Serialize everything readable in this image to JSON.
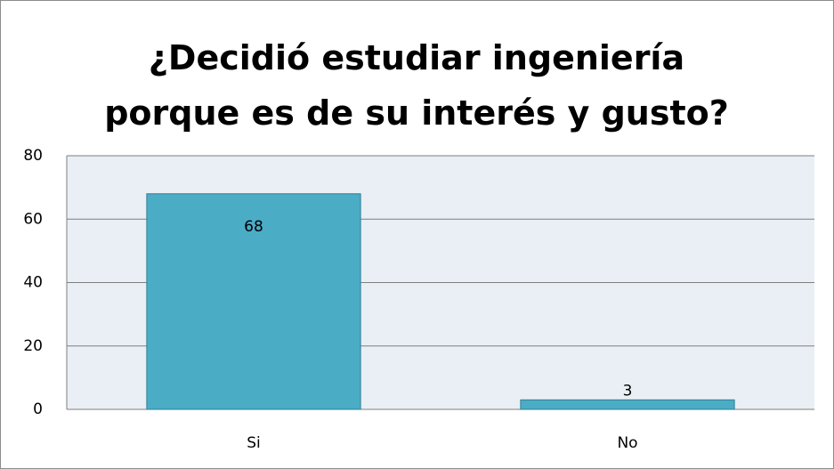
{
  "chart_data": {
    "type": "bar",
    "title": "¿Decidió estudiar ingeniería porque es de su interés y gusto?",
    "categories": [
      "Si",
      "No"
    ],
    "values": [
      68,
      3
    ],
    "color": "#4bacc6",
    "ylim": [
      0,
      80
    ],
    "yticks": [
      0,
      20,
      40,
      60,
      80
    ],
    "grid": true
  }
}
